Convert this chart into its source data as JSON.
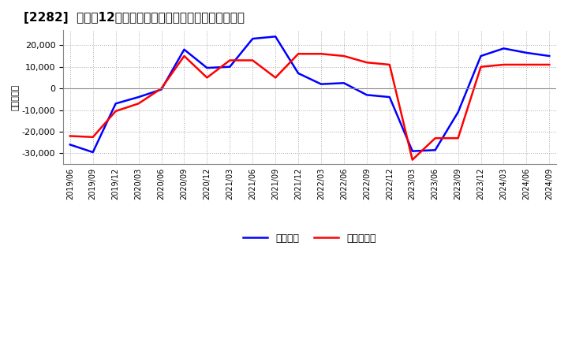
{
  "title": "[2282]  利益だ12か月移動合計の対前年同期増減額の推移",
  "ylabel": "（百万円）",
  "x_labels": [
    "2019/06",
    "2019/09",
    "2019/12",
    "2020/03",
    "2020/06",
    "2020/09",
    "2020/12",
    "2021/03",
    "2021/06",
    "2021/09",
    "2021/12",
    "2022/03",
    "2022/06",
    "2022/09",
    "2022/12",
    "2023/03",
    "2023/06",
    "2023/09",
    "2023/12",
    "2024/03",
    "2024/06",
    "2024/09"
  ],
  "keijo_rieki": [
    -26000,
    -29500,
    -7000,
    -4000,
    -500,
    18000,
    9500,
    10000,
    23000,
    24000,
    7000,
    2000,
    2500,
    -3000,
    -4000,
    -29000,
    -28500,
    -11000,
    15000,
    18500,
    16500,
    15000
  ],
  "touki_junrieki": [
    -22000,
    -22500,
    -10500,
    -7000,
    0,
    15000,
    5000,
    13000,
    13000,
    5000,
    16000,
    16000,
    15000,
    12000,
    11000,
    -33000,
    -23000,
    -23000,
    10000,
    11000,
    11000,
    11000
  ],
  "keijo_color": "#0000ff",
  "touki_color": "#ff0000",
  "ylim": [
    -35000,
    27000
  ],
  "yticks": [
    -30000,
    -20000,
    -10000,
    0,
    10000,
    20000
  ],
  "background_color": "#ffffff",
  "plot_bg_color": "#ffffff",
  "grid_color": "#aaaaaa",
  "legend_keijo": "経常利益",
  "legend_touki": "当期純利益"
}
